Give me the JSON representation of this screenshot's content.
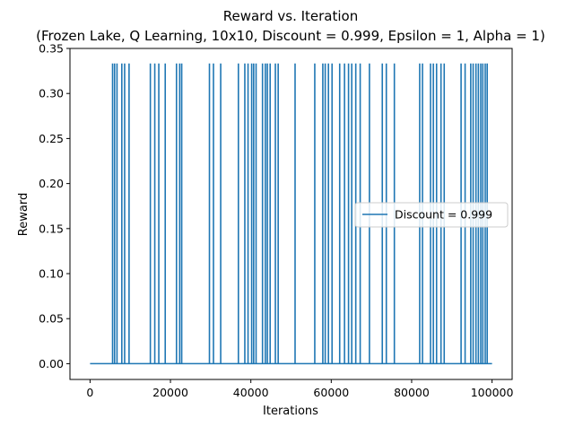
{
  "chart_data": {
    "type": "line",
    "title_line1": "Reward vs. Iteration",
    "title_line2": "(Frozen Lake, Q Learning, 10x10, Discount = 0.999, Epsilon = 1, Alpha = 1)",
    "xlabel": "Iterations",
    "ylabel": "Reward",
    "xlim": [
      -5000,
      105000
    ],
    "ylim": [
      -0.0175,
      0.35
    ],
    "x_ticks": [
      0,
      20000,
      40000,
      60000,
      80000,
      100000
    ],
    "x_tick_labels": [
      "0",
      "20000",
      "40000",
      "60000",
      "80000",
      "100000"
    ],
    "y_ticks": [
      0.0,
      0.05,
      0.1,
      0.15,
      0.2,
      0.25,
      0.3,
      0.35
    ],
    "y_tick_labels": [
      "0.00",
      "0.05",
      "0.10",
      "0.15",
      "0.20",
      "0.25",
      "0.30",
      "0.35"
    ],
    "grid": false,
    "legend_position": "center-right",
    "x_range": [
      0,
      100000
    ],
    "baseline_value": 0.0,
    "spike_value": 0.3333,
    "series": [
      {
        "name": "Discount = 0.999",
        "color": "#1f77b4",
        "spike_iterations": [
          5600,
          6100,
          6700,
          7900,
          8600,
          9700,
          15000,
          16100,
          17100,
          18700,
          21500,
          22300,
          22800,
          29700,
          30700,
          32500,
          36900,
          38500,
          39300,
          40200,
          40700,
          41300,
          42900,
          43600,
          44100,
          44800,
          46100,
          46800,
          51000,
          55900,
          57900,
          58500,
          59300,
          60200,
          62100,
          63300,
          64300,
          65100,
          66100,
          67200,
          69500,
          72700,
          73700,
          75700,
          82000,
          82700,
          84700,
          85400,
          86200,
          87300,
          88100,
          92300,
          93300,
          94700,
          95300,
          96000,
          96600,
          97200,
          97700,
          98300,
          98800
        ]
      }
    ]
  }
}
